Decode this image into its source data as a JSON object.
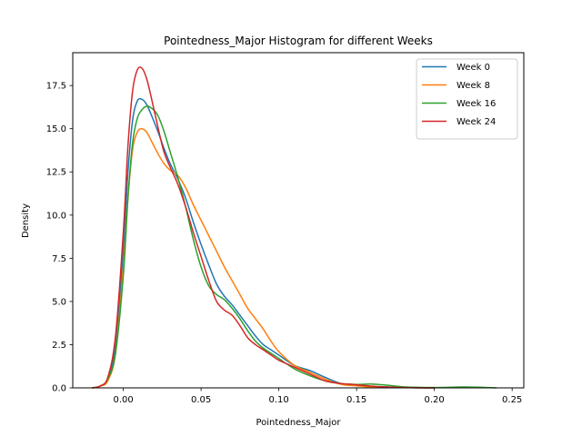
{
  "chart_data": {
    "type": "line",
    "title": "Pointedness_Major Histogram for different Weeks",
    "xlabel": "Pointedness_Major",
    "ylabel": "Density",
    "xlim": [
      -0.0325,
      0.2575
    ],
    "ylim": [
      0,
      19.4
    ],
    "xticks": [
      0.0,
      0.05,
      0.1,
      0.15,
      0.2,
      0.25
    ],
    "xtick_labels": [
      "0.00",
      "0.05",
      "0.10",
      "0.15",
      "0.20",
      "0.25"
    ],
    "yticks": [
      0.0,
      2.5,
      5.0,
      7.5,
      10.0,
      12.5,
      15.0,
      17.5
    ],
    "ytick_labels": [
      "0.0",
      "2.5",
      "5.0",
      "7.5",
      "10.0",
      "12.5",
      "15.0",
      "17.5"
    ],
    "legend_position": "upper right",
    "grid": false,
    "series": [
      {
        "name": "Week 0",
        "color": "#1f77b4",
        "x": [
          -0.02,
          -0.015,
          -0.01,
          -0.005,
          0.0,
          0.003,
          0.006,
          0.009,
          0.012,
          0.015,
          0.018,
          0.022,
          0.026,
          0.03,
          0.035,
          0.04,
          0.045,
          0.05,
          0.055,
          0.06,
          0.065,
          0.07,
          0.075,
          0.08,
          0.085,
          0.09,
          0.095,
          0.1,
          0.11,
          0.12,
          0.13,
          0.14,
          0.15,
          0.16,
          0.17,
          0.18,
          0.2
        ],
        "y": [
          0.0,
          0.1,
          0.5,
          2.5,
          8.0,
          12.5,
          15.5,
          16.6,
          16.7,
          16.4,
          15.8,
          14.9,
          13.9,
          13.0,
          12.1,
          11.0,
          9.6,
          8.3,
          7.1,
          6.0,
          5.3,
          4.8,
          4.2,
          3.6,
          3.0,
          2.5,
          2.2,
          1.9,
          1.3,
          1.0,
          0.6,
          0.25,
          0.15,
          0.08,
          0.05,
          0.02,
          0.0
        ]
      },
      {
        "name": "Week 8",
        "color": "#ff7f0e",
        "x": [
          -0.02,
          -0.015,
          -0.01,
          -0.005,
          0.0,
          0.003,
          0.006,
          0.009,
          0.012,
          0.015,
          0.018,
          0.022,
          0.026,
          0.03,
          0.035,
          0.04,
          0.045,
          0.05,
          0.055,
          0.06,
          0.065,
          0.07,
          0.075,
          0.08,
          0.085,
          0.09,
          0.095,
          0.1,
          0.11,
          0.12,
          0.13,
          0.14,
          0.15,
          0.16,
          0.17,
          0.18,
          0.2
        ],
        "y": [
          0.0,
          0.1,
          0.4,
          2.0,
          7.0,
          11.0,
          13.8,
          14.8,
          15.0,
          14.8,
          14.3,
          13.6,
          13.0,
          12.6,
          12.3,
          11.6,
          10.6,
          9.7,
          8.8,
          7.9,
          7.0,
          6.2,
          5.4,
          4.6,
          4.0,
          3.4,
          2.7,
          2.1,
          1.3,
          0.9,
          0.5,
          0.2,
          0.12,
          0.05,
          0.02,
          0.01,
          0.0
        ]
      },
      {
        "name": "Week 16",
        "color": "#2ca02c",
        "x": [
          -0.02,
          -0.015,
          -0.01,
          -0.005,
          0.0,
          0.003,
          0.006,
          0.009,
          0.012,
          0.015,
          0.018,
          0.022,
          0.026,
          0.03,
          0.035,
          0.04,
          0.045,
          0.05,
          0.055,
          0.06,
          0.065,
          0.07,
          0.075,
          0.08,
          0.085,
          0.09,
          0.095,
          0.1,
          0.11,
          0.12,
          0.13,
          0.14,
          0.15,
          0.16,
          0.17,
          0.18,
          0.2,
          0.22,
          0.24
        ],
        "y": [
          0.0,
          0.1,
          0.5,
          2.0,
          6.5,
          11.0,
          14.2,
          15.6,
          16.1,
          16.3,
          16.2,
          15.8,
          14.9,
          13.7,
          12.2,
          10.5,
          8.6,
          7.0,
          5.9,
          5.4,
          5.1,
          4.6,
          4.0,
          3.3,
          2.7,
          2.3,
          2.0,
          1.7,
          1.1,
          0.7,
          0.4,
          0.25,
          0.2,
          0.22,
          0.15,
          0.06,
          0.02,
          0.05,
          0.0
        ]
      },
      {
        "name": "Week 24",
        "color": "#d62728",
        "x": [
          -0.02,
          -0.015,
          -0.01,
          -0.005,
          0.0,
          0.003,
          0.006,
          0.009,
          0.012,
          0.015,
          0.018,
          0.022,
          0.026,
          0.03,
          0.035,
          0.04,
          0.045,
          0.05,
          0.055,
          0.06,
          0.065,
          0.07,
          0.075,
          0.08,
          0.085,
          0.09,
          0.095,
          0.1,
          0.11,
          0.12,
          0.13,
          0.14,
          0.15,
          0.16,
          0.17,
          0.18,
          0.2
        ],
        "y": [
          0.0,
          0.1,
          0.6,
          3.0,
          9.0,
          14.0,
          17.2,
          18.4,
          18.5,
          17.9,
          16.8,
          15.2,
          13.7,
          12.8,
          11.8,
          10.5,
          9.0,
          7.6,
          6.2,
          5.0,
          4.5,
          4.2,
          3.6,
          2.9,
          2.5,
          2.2,
          1.9,
          1.6,
          1.2,
          0.8,
          0.4,
          0.25,
          0.18,
          0.1,
          0.05,
          0.02,
          0.0
        ]
      }
    ]
  }
}
